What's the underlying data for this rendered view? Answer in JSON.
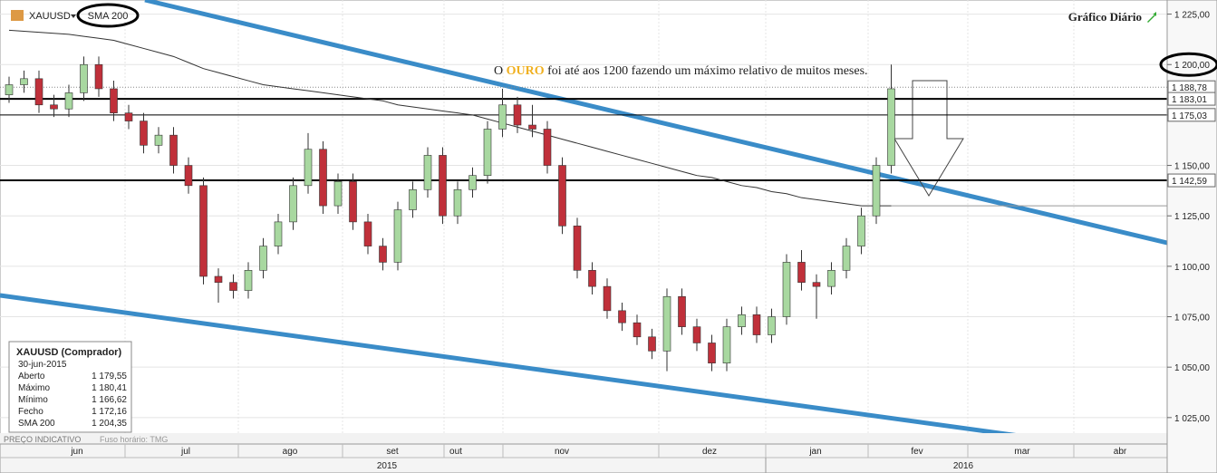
{
  "chart_data": {
    "type": "candlestick",
    "symbol": "XAUUSD",
    "indicator": "SMA 200",
    "title": "Gráfico Diário",
    "annotation": [
      "O",
      "OURO",
      "foi até aos 1200 fazendo um máximo relativo de muitos meses."
    ],
    "up_color": "#a8d8a0",
    "down_color": "#c0303a",
    "sma_color": "#333333",
    "open": [
      1185,
      1190,
      1193,
      1180,
      1178,
      1186,
      1200,
      1188,
      1176,
      1172,
      1160,
      1165,
      1150,
      1140,
      1095,
      1092,
      1088,
      1098,
      1110,
      1122,
      1140,
      1158,
      1130,
      1142,
      1122,
      1110,
      1102,
      1128,
      1138,
      1155,
      1125,
      1138,
      1145,
      1168,
      1180,
      1170,
      1168,
      1150,
      1120,
      1098,
      1090,
      1078,
      1072,
      1065,
      1058,
      1085,
      1070,
      1062,
      1052,
      1070,
      1076,
      1066,
      1075,
      1102,
      1092,
      1090,
      1098,
      1110,
      1125,
      1150
    ],
    "high": [
      1194,
      1197,
      1197,
      1185,
      1190,
      1204,
      1204,
      1192,
      1180,
      1176,
      1169,
      1169,
      1154,
      1144,
      1099,
      1096,
      1102,
      1114,
      1126,
      1144,
      1166,
      1162,
      1146,
      1146,
      1126,
      1114,
      1132,
      1142,
      1159,
      1159,
      1142,
      1149,
      1172,
      1188,
      1184,
      1180,
      1172,
      1154,
      1124,
      1102,
      1094,
      1082,
      1076,
      1069,
      1089,
      1089,
      1074,
      1066,
      1074,
      1080,
      1080,
      1079,
      1106,
      1108,
      1096,
      1102,
      1114,
      1129,
      1154,
      1200
    ],
    "low": [
      1181,
      1186,
      1176,
      1174,
      1174,
      1182,
      1184,
      1172,
      1168,
      1156,
      1156,
      1146,
      1136,
      1091,
      1082,
      1084,
      1084,
      1094,
      1106,
      1118,
      1136,
      1126,
      1126,
      1118,
      1106,
      1098,
      1098,
      1124,
      1134,
      1121,
      1121,
      1134,
      1141,
      1164,
      1166,
      1164,
      1146,
      1116,
      1094,
      1086,
      1074,
      1068,
      1061,
      1054,
      1048,
      1066,
      1058,
      1048,
      1048,
      1066,
      1062,
      1062,
      1071,
      1088,
      1074,
      1086,
      1094,
      1106,
      1121,
      1146
    ],
    "close": [
      1190,
      1193,
      1180,
      1178,
      1186,
      1200,
      1188,
      1176,
      1172,
      1160,
      1165,
      1150,
      1140,
      1095,
      1092,
      1088,
      1098,
      1110,
      1122,
      1140,
      1158,
      1130,
      1142,
      1122,
      1110,
      1102,
      1128,
      1138,
      1155,
      1125,
      1138,
      1145,
      1168,
      1180,
      1170,
      1168,
      1150,
      1120,
      1098,
      1090,
      1078,
      1072,
      1065,
      1058,
      1085,
      1070,
      1062,
      1052,
      1070,
      1076,
      1066,
      1075,
      1102,
      1092,
      1090,
      1098,
      1110,
      1125,
      1150,
      1188
    ],
    "sma": [
      1217,
      1216.5,
      1216,
      1215.5,
      1215,
      1214,
      1213,
      1212,
      1210,
      1208,
      1206,
      1204,
      1201,
      1198,
      1196,
      1194,
      1192,
      1190,
      1189,
      1188,
      1187,
      1186,
      1185,
      1184,
      1183,
      1182,
      1180,
      1179,
      1178,
      1177,
      1176,
      1175,
      1173,
      1171,
      1169,
      1167,
      1165,
      1163,
      1161,
      1159,
      1157,
      1155,
      1153,
      1151,
      1149,
      1147,
      1145,
      1144,
      1142,
      1140,
      1139,
      1137,
      1136,
      1134,
      1133,
      1132,
      1131,
      1130,
      1130,
      1130
    ],
    "ylim": [
      1011.9,
      1232
    ],
    "yticks": [
      {
        "value": 1025,
        "label": "1 025,00"
      },
      {
        "value": 1050,
        "label": "1 050,00"
      },
      {
        "value": 1075,
        "label": "1 075,00"
      },
      {
        "value": 1100,
        "label": "1 100,00"
      },
      {
        "value": 1125,
        "label": "1 125,00"
      },
      {
        "value": 1150,
        "label": "1 150,00"
      },
      {
        "value": 1175,
        "label": "1 175,00"
      },
      {
        "value": 1200,
        "label": "1 200,00"
      },
      {
        "value": 1225,
        "label": "1 225,00"
      }
    ],
    "price_tags": [
      {
        "value": 1188.78,
        "label": "1 188,78",
        "line": "dotted"
      },
      {
        "value": 1183.01,
        "label": "1 183,01",
        "line": "thick"
      },
      {
        "value": 1175.03,
        "label": "1 175,03",
        "line": "thin"
      },
      {
        "value": 1142.59,
        "label": "1 142,59",
        "line": "thick"
      }
    ],
    "grid": true,
    "months": [
      "jun",
      "jul",
      "ago",
      "set",
      "out",
      "nov",
      "dez",
      "jan",
      "fev",
      "mar",
      "abr"
    ],
    "years": [
      "2015",
      "2016"
    ],
    "footer": [
      "PREÇO INDICATIVO",
      "Fuso horário: TMG"
    ],
    "info": {
      "title": "XAUUSD (Comprador)",
      "date": "30-jun-2015",
      "rows": [
        [
          "Aberto",
          "1 179,55"
        ],
        [
          "Máximo",
          "1 180,41"
        ],
        [
          "Mínimo",
          "1 166,62"
        ],
        [
          "Fecho",
          "1 172,16"
        ],
        [
          "SMA 200",
          "1 204,35"
        ]
      ]
    }
  }
}
